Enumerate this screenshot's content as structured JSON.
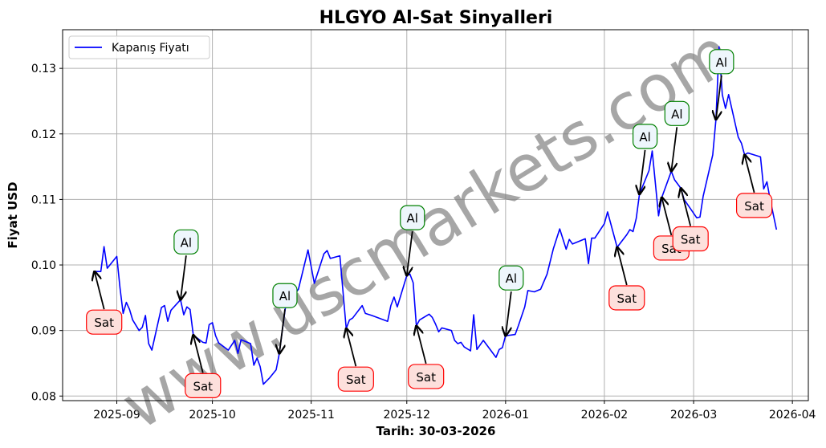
{
  "chart_data": {
    "type": "line",
    "title": "HLGYO Al-Sat Sinyalleri",
    "xlabel": "Tarih: 30-03-2026",
    "ylabel": "Fiyat USD",
    "xlim": [
      "2025-08-15",
      "2026-04-06"
    ],
    "ylim": [
      0.0793,
      0.1359
    ],
    "grid": true,
    "legend_placement": "upper-left",
    "watermark": "www.uscmarkets.com",
    "x_ticks": [
      {
        "date": "2025-09-01",
        "label": "2025-09"
      },
      {
        "date": "2025-10-01",
        "label": "2025-10"
      },
      {
        "date": "2025-11-01",
        "label": "2025-11"
      },
      {
        "date": "2025-12-01",
        "label": "2025-12"
      },
      {
        "date": "2026-01-01",
        "label": "2026-01"
      },
      {
        "date": "2026-02-01",
        "label": "2026-02"
      },
      {
        "date": "2026-03-01",
        "label": "2026-03"
      },
      {
        "date": "2026-04-01",
        "label": "2026-04"
      }
    ],
    "y_ticks": [
      0.08,
      0.09,
      0.1,
      0.11,
      0.12,
      0.13
    ],
    "y_tick_labels": [
      "0.08",
      "0.09",
      "0.10",
      "0.11",
      "0.12",
      "0.13"
    ],
    "colors": {
      "line": "#0000ff",
      "buy_border": "#008000",
      "buy_fill": "#eef6fc",
      "sell_border": "#ff0000",
      "sell_fill": "#fde0dc",
      "grid": "#b0b0b0",
      "watermark": "#808080"
    },
    "series": [
      {
        "name": "Kapanış Fiyatı",
        "x": [
          "2025-08-25",
          "2025-08-27",
          "2025-08-28",
          "2025-08-29",
          "2025-09-01",
          "2025-09-02",
          "2025-09-03",
          "2025-09-04",
          "2025-09-05",
          "2025-09-06",
          "2025-09-08",
          "2025-09-09",
          "2025-09-10",
          "2025-09-11",
          "2025-09-12",
          "2025-09-15",
          "2025-09-16",
          "2025-09-17",
          "2025-09-18",
          "2025-09-21",
          "2025-09-22",
          "2025-09-23",
          "2025-09-24",
          "2025-09-25",
          "2025-09-28",
          "2025-09-29",
          "2025-09-30",
          "2025-10-01",
          "2025-10-02",
          "2025-10-03",
          "2025-10-06",
          "2025-10-08",
          "2025-10-09",
          "2025-10-10",
          "2025-10-13",
          "2025-10-14",
          "2025-10-15",
          "2025-10-16",
          "2025-10-17",
          "2025-10-19",
          "2025-10-21",
          "2025-10-22",
          "2025-10-23",
          "2025-10-24",
          "2025-10-28",
          "2025-10-31",
          "2025-11-02",
          "2025-11-05",
          "2025-11-06",
          "2025-11-07",
          "2025-11-10",
          "2025-11-12",
          "2025-11-13",
          "2025-11-14",
          "2025-11-17",
          "2025-11-18",
          "2025-11-20",
          "2025-11-25",
          "2025-11-26",
          "2025-11-27",
          "2025-11-28",
          "2025-12-01",
          "2025-12-02",
          "2025-12-03",
          "2025-12-04",
          "2025-12-05",
          "2025-12-08",
          "2025-12-09",
          "2025-12-10",
          "2025-12-11",
          "2025-12-12",
          "2025-12-15",
          "2025-12-16",
          "2025-12-17",
          "2025-12-18",
          "2025-12-19",
          "2025-12-21",
          "2025-12-22",
          "2025-12-23",
          "2025-12-25",
          "2025-12-29",
          "2025-12-30",
          "2025-12-31",
          "2026-01-01",
          "2026-01-04",
          "2026-01-05",
          "2026-01-07",
          "2026-01-08",
          "2026-01-10",
          "2026-01-12",
          "2026-01-14",
          "2026-01-16",
          "2026-01-18",
          "2026-01-20",
          "2026-01-21",
          "2026-01-22",
          "2026-01-26",
          "2026-01-27",
          "2026-01-28",
          "2026-01-29",
          "2026-02-01",
          "2026-02-02",
          "2026-02-05",
          "2026-02-08",
          "2026-02-09",
          "2026-02-10",
          "2026-02-11",
          "2026-02-12",
          "2026-02-15",
          "2026-02-16",
          "2026-02-18",
          "2026-02-19",
          "2026-02-22",
          "2026-02-23",
          "2026-02-25",
          "2026-02-26",
          "2026-03-02",
          "2026-03-03",
          "2026-03-04",
          "2026-03-07",
          "2026-03-08",
          "2026-03-09",
          "2026-03-10",
          "2026-03-11",
          "2026-03-12",
          "2026-03-15",
          "2026-03-16",
          "2026-03-17",
          "2026-03-18",
          "2026-03-22",
          "2026-03-23",
          "2026-03-24",
          "2026-03-25",
          "2026-03-27"
        ],
        "y": [
          0.099,
          0.099,
          0.1028,
          0.0995,
          0.1013,
          0.0965,
          0.0926,
          0.0943,
          0.0932,
          0.0916,
          0.09,
          0.0905,
          0.0923,
          0.088,
          0.087,
          0.0935,
          0.0938,
          0.0914,
          0.0931,
          0.0947,
          0.0924,
          0.0936,
          0.0932,
          0.0893,
          0.0882,
          0.0881,
          0.0909,
          0.0912,
          0.0892,
          0.0881,
          0.087,
          0.0885,
          0.0865,
          0.0886,
          0.088,
          0.0847,
          0.0858,
          0.0845,
          0.0818,
          0.0828,
          0.084,
          0.0865,
          0.0902,
          0.0938,
          0.0963,
          0.1023,
          0.0972,
          0.1017,
          0.1022,
          0.101,
          0.1014,
          0.0903,
          0.0916,
          0.0919,
          0.0938,
          0.0926,
          0.0923,
          0.0914,
          0.0938,
          0.0951,
          0.0936,
          0.0984,
          0.0986,
          0.0973,
          0.0907,
          0.0916,
          0.0925,
          0.092,
          0.091,
          0.0898,
          0.0904,
          0.09,
          0.0885,
          0.088,
          0.0882,
          0.0875,
          0.0869,
          0.0924,
          0.0871,
          0.0885,
          0.0859,
          0.0871,
          0.0874,
          0.0892,
          0.0894,
          0.0907,
          0.0936,
          0.0961,
          0.0959,
          0.0963,
          0.0986,
          0.1025,
          0.1055,
          0.1024,
          0.1039,
          0.1032,
          0.104,
          0.1002,
          0.1041,
          0.1041,
          0.1063,
          0.1081,
          0.1027,
          0.1046,
          0.1054,
          0.1051,
          0.1071,
          0.1108,
          0.1144,
          0.1174,
          0.1075,
          0.1103,
          0.1143,
          0.113,
          0.1117,
          0.11,
          0.1072,
          0.1073,
          0.1105,
          0.1168,
          0.1222,
          0.1333,
          0.126,
          0.1239,
          0.126,
          0.1195,
          0.1186,
          0.1168,
          0.1171,
          0.1165,
          0.1116,
          0.1127,
          0.11,
          0.1054
        ]
      }
    ],
    "signals": [
      {
        "type": "sell",
        "label": "Sat",
        "date": "2025-08-25",
        "price": 0.099
      },
      {
        "type": "buy",
        "label": "Al",
        "date": "2025-09-21",
        "price": 0.0947
      },
      {
        "type": "sell",
        "label": "Sat",
        "date": "2025-09-25",
        "price": 0.0893
      },
      {
        "type": "buy",
        "label": "Al",
        "date": "2025-10-22",
        "price": 0.0865
      },
      {
        "type": "sell",
        "label": "Sat",
        "date": "2025-11-12",
        "price": 0.0903
      },
      {
        "type": "buy",
        "label": "Al",
        "date": "2025-12-01",
        "price": 0.0984
      },
      {
        "type": "sell",
        "label": "Sat",
        "date": "2025-12-04",
        "price": 0.0907
      },
      {
        "type": "buy",
        "label": "Al",
        "date": "2026-01-01",
        "price": 0.0892
      },
      {
        "type": "sell",
        "label": "Sat",
        "date": "2026-02-05",
        "price": 0.1027
      },
      {
        "type": "buy",
        "label": "Al",
        "date": "2026-02-12",
        "price": 0.1108
      },
      {
        "type": "sell",
        "label": "Sat",
        "date": "2026-02-19",
        "price": 0.1103
      },
      {
        "type": "buy",
        "label": "Al",
        "date": "2026-02-22",
        "price": 0.1143
      },
      {
        "type": "sell",
        "label": "Sat",
        "date": "2026-02-25",
        "price": 0.1117
      },
      {
        "type": "buy",
        "label": "Al",
        "date": "2026-03-08",
        "price": 0.1222
      },
      {
        "type": "sell",
        "label": "Sat",
        "date": "2026-03-17",
        "price": 0.1168
      }
    ]
  }
}
